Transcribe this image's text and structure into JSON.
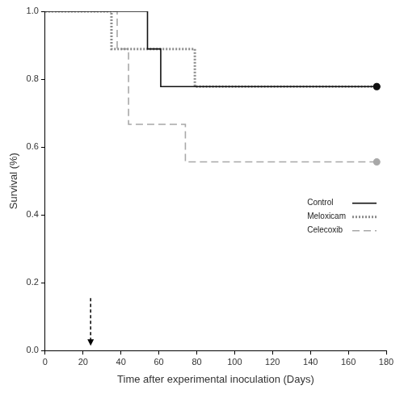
{
  "chart_data": {
    "type": "line",
    "x_label": "Time after experimental inoculation (Days)",
    "y_label": "Survival (%)",
    "xlim": [
      0,
      180
    ],
    "xticks": [
      0,
      20,
      40,
      60,
      80,
      100,
      120,
      140,
      160,
      180
    ],
    "ylim": [
      0,
      1
    ],
    "yticks": [
      {
        "value": 0,
        "label": "0.0"
      },
      0.2,
      0.4,
      0.6,
      0.8,
      {
        "value": 1,
        "label": "1.0"
      }
    ],
    "grid": false,
    "legend": "lower right",
    "annotations": [
      {
        "type": "arrow",
        "x": 24
      }
    ],
    "series": [
      {
        "name": "Control",
        "color": "#111111",
        "line_style": "solid",
        "marker": "circle",
        "x": [
          0,
          54,
          61,
          175
        ],
        "values": [
          1.0,
          0.889,
          0.778,
          0.778
        ]
      },
      {
        "name": "Meloxicam",
        "color": "#8c8c8c",
        "line_style": "dotted",
        "marker": "circle",
        "x": [
          0,
          35,
          79,
          175
        ],
        "values": [
          1.0,
          0.889,
          0.778,
          0.778
        ]
      },
      {
        "name": "Celecoxib",
        "color": "#a8a8a8",
        "line_style": "dashed",
        "marker": "circle",
        "x": [
          0,
          38,
          44,
          74,
          175
        ],
        "values": [
          1.0,
          0.889,
          0.667,
          0.556,
          0.556
        ]
      }
    ]
  }
}
